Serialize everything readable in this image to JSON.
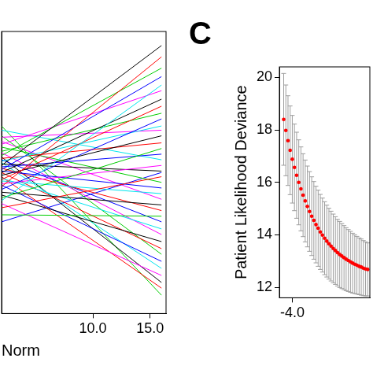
{
  "chart_data": [
    {
      "type": "line",
      "x_label": "Norm",
      "xlim": [
        2,
        16.4
      ],
      "xticks": [
        {
          "value": 10,
          "label": "10.0"
        },
        {
          "value": 15,
          "label": "15.0"
        }
      ],
      "ylim": [
        -1,
        1
      ],
      "tick_labels": "x",
      "grid": false,
      "x": [
        2,
        16
      ],
      "series": [
        {
          "color": "#000000",
          "values": [
            0.05,
            0.9
          ]
        },
        {
          "color": "#FF0000",
          "values": [
            -0.1,
            0.82
          ]
        },
        {
          "color": "#00CD00",
          "values": [
            0.12,
            0.74
          ]
        },
        {
          "color": "#0000FF",
          "values": [
            0.02,
            0.68
          ]
        },
        {
          "color": "#00E5EE",
          "values": [
            -0.2,
            0.62
          ]
        },
        {
          "color": "#FF00FF",
          "values": [
            0.2,
            0.58
          ]
        },
        {
          "color": "#000000",
          "values": [
            0.0,
            0.52
          ]
        },
        {
          "color": "#FF0000",
          "values": [
            -0.05,
            0.47
          ]
        },
        {
          "color": "#00CD00",
          "values": [
            0.15,
            0.42
          ]
        },
        {
          "color": "#0000FF",
          "values": [
            -0.12,
            0.38
          ]
        },
        {
          "color": "#00E5EE",
          "values": [
            0.08,
            0.33
          ]
        },
        {
          "color": "#FF00FF",
          "values": [
            0.25,
            0.3
          ]
        },
        {
          "color": "#000000",
          "values": [
            -0.02,
            0.26
          ]
        },
        {
          "color": "#FF0000",
          "values": [
            0.1,
            0.21
          ]
        },
        {
          "color": "#00CD00",
          "values": [
            -0.18,
            0.17
          ]
        },
        {
          "color": "#0000FF",
          "values": [
            0.04,
            0.13
          ]
        },
        {
          "color": "#00E5EE",
          "values": [
            0.3,
            0.09
          ]
        },
        {
          "color": "#FF00FF",
          "values": [
            -0.08,
            0.05
          ]
        },
        {
          "color": "#000000",
          "values": [
            0.06,
            0.01
          ]
        },
        {
          "color": "#FF0000",
          "values": [
            -0.25,
            -0.03
          ]
        },
        {
          "color": "#00CD00",
          "values": [
            0.18,
            -0.07
          ]
        },
        {
          "color": "#0000FF",
          "values": [
            0.01,
            -0.11
          ]
        },
        {
          "color": "#00E5EE",
          "values": [
            -0.06,
            -0.15
          ]
        },
        {
          "color": "#FF00FF",
          "values": [
            0.22,
            -0.19
          ]
        },
        {
          "color": "#000000",
          "values": [
            -0.14,
            -0.23
          ]
        },
        {
          "color": "#FF0000",
          "values": [
            0.03,
            -0.27
          ]
        },
        {
          "color": "#00CD00",
          "values": [
            -0.3,
            -0.31
          ]
        },
        {
          "color": "#0000FF",
          "values": [
            0.09,
            -0.35
          ]
        },
        {
          "color": "#00E5EE",
          "values": [
            -0.04,
            -0.4
          ]
        },
        {
          "color": "#FF00FF",
          "values": [
            0.14,
            -0.44
          ]
        },
        {
          "color": "#000000",
          "values": [
            -0.16,
            -0.49
          ]
        },
        {
          "color": "#FF0000",
          "values": [
            0.0,
            -0.54
          ]
        },
        {
          "color": "#00CD00",
          "values": [
            0.26,
            -0.58
          ]
        },
        {
          "color": "#0000FF",
          "values": [
            -0.09,
            -0.63
          ]
        },
        {
          "color": "#00E5EE",
          "values": [
            0.07,
            -0.68
          ]
        },
        {
          "color": "#FF00FF",
          "values": [
            -0.22,
            -0.73
          ]
        },
        {
          "color": "#000000",
          "values": [
            0.11,
            -0.78
          ]
        },
        {
          "color": "#FF0000",
          "values": [
            -0.03,
            -0.82
          ]
        },
        {
          "color": "#00CD00",
          "values": [
            0.33,
            -0.87
          ]
        },
        {
          "color": "#0000FF",
          "values": [
            -0.35,
            0.0
          ]
        }
      ]
    },
    {
      "type": "scatter",
      "title": "C",
      "y_label": "Patient Likelihood Deviance",
      "xlim": [
        -4.15,
        -3.1
      ],
      "xticks": [
        {
          "value": -4,
          "label": "-4.0"
        }
      ],
      "ylim": [
        11.6,
        20.4
      ],
      "yticks": [
        12,
        14,
        16,
        18,
        20
      ],
      "grid": false,
      "series": [
        {
          "color": "#FF0000",
          "marker": "circle",
          "x": [
            -4.1,
            -4.075,
            -4.05,
            -4.025,
            -4,
            -3.975,
            -3.95,
            -3.925,
            -3.9,
            -3.875,
            -3.85,
            -3.825,
            -3.8,
            -3.775,
            -3.75,
            -3.725,
            -3.7,
            -3.675,
            -3.65,
            -3.625,
            -3.6,
            -3.575,
            -3.55,
            -3.525,
            -3.5,
            -3.475,
            -3.45,
            -3.425,
            -3.4,
            -3.375,
            -3.35,
            -3.325,
            -3.3,
            -3.275,
            -3.25,
            -3.225,
            -3.2,
            -3.175,
            -3.15,
            -3.125
          ],
          "values": [
            18.4,
            17.98,
            17.59,
            17.22,
            16.88,
            16.57,
            16.27,
            16.0,
            15.75,
            15.51,
            15.29,
            15.08,
            14.89,
            14.71,
            14.55,
            14.39,
            14.25,
            14.11,
            13.99,
            13.87,
            13.76,
            13.66,
            13.57,
            13.48,
            13.4,
            13.32,
            13.25,
            13.19,
            13.13,
            13.07,
            13.02,
            12.97,
            12.92,
            12.88,
            12.84,
            12.8,
            12.77,
            12.73,
            12.7,
            12.68
          ],
          "error": [
            1.75,
            1.73,
            1.71,
            1.69,
            1.67,
            1.65,
            1.64,
            1.62,
            1.6,
            1.58,
            1.56,
            1.54,
            1.52,
            1.5,
            1.48,
            1.46,
            1.45,
            1.43,
            1.41,
            1.39,
            1.37,
            1.35,
            1.33,
            1.31,
            1.29,
            1.27,
            1.26,
            1.24,
            1.22,
            1.2,
            1.18,
            1.16,
            1.14,
            1.12,
            1.1,
            1.08,
            1.07,
            1.05,
            1.03,
            1.01
          ]
        }
      ]
    }
  ]
}
